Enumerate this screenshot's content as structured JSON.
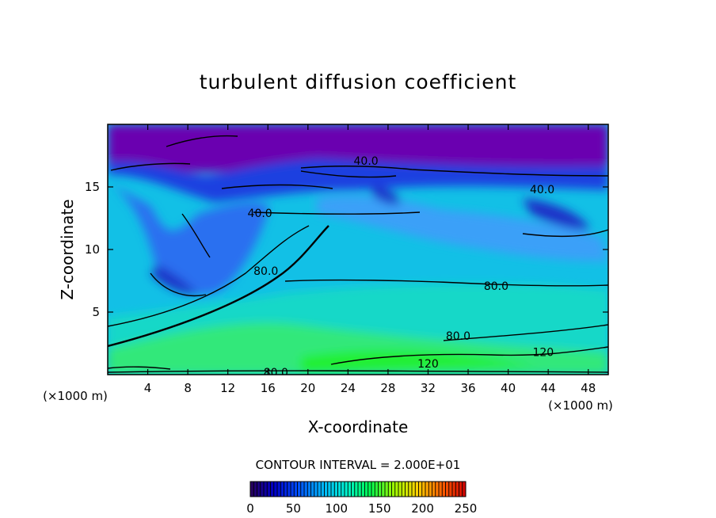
{
  "chart_data": {
    "type": "heatmap",
    "title": "turbulent diffusion coefficient",
    "xlabel": "X-coordinate",
    "ylabel": "Z-coordinate",
    "x_unit_label": "(×1000 m)",
    "y_unit_label": "(×1000 m)",
    "xlim": [
      0,
      50
    ],
    "ylim": [
      0,
      20
    ],
    "x_ticks": [
      4,
      8,
      12,
      16,
      20,
      24,
      28,
      32,
      36,
      40,
      44,
      48
    ],
    "y_ticks": [
      5,
      10,
      15
    ],
    "contour_interval_text": "CONTOUR INTERVAL = 2.000E+01",
    "colorbar": {
      "range": [
        0,
        250
      ],
      "ticks": [
        0,
        50,
        100,
        150,
        200,
        250
      ],
      "colors": [
        "#2a005a",
        "#0000c8",
        "#0050ff",
        "#00b4ff",
        "#00f0d0",
        "#00ff50",
        "#a0ff00",
        "#ffd000",
        "#ff6000",
        "#d00000"
      ]
    },
    "contour_labels": [
      {
        "text": "40.0",
        "x": 25.8,
        "z": 17.1
      },
      {
        "text": "40.0",
        "x": 43.4,
        "z": 14.8
      },
      {
        "text": "40.0",
        "x": 15.2,
        "z": 12.9
      },
      {
        "text": "80.0",
        "x": 15.8,
        "z": 8.3
      },
      {
        "text": "80.0",
        "x": 38.8,
        "z": 7.1
      },
      {
        "text": "80.0",
        "x": 35.0,
        "z": 3.1
      },
      {
        "text": "120",
        "x": 43.5,
        "z": 1.8
      },
      {
        "text": "120",
        "x": 32.0,
        "z": 0.9
      },
      {
        "text": "80.0",
        "x": 16.8,
        "z": 0.2
      }
    ]
  }
}
